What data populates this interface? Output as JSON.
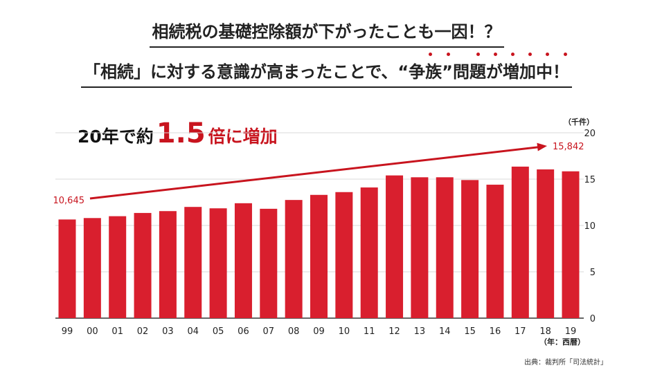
{
  "title_line1": "相続税の基礎控除額が下がったことも一因！？",
  "title_line2": "「相続」に対する意識が高まったことで、“争族”問題が増加中！",
  "callout": {
    "prefix": "20年で約",
    "number": "1.5",
    "suffix": "倍に増加"
  },
  "source": "出典：裁判所「司法統計」",
  "colors": {
    "bar": "#d91f2e",
    "accent": "#c8141e",
    "grid": "#d9d9d9",
    "axis": "#333333"
  },
  "chart_data": {
    "type": "bar",
    "categories": [
      "99",
      "00",
      "01",
      "02",
      "03",
      "04",
      "05",
      "06",
      "07",
      "08",
      "09",
      "10",
      "11",
      "12",
      "13",
      "14",
      "15",
      "16",
      "17",
      "18",
      "19"
    ],
    "values": [
      10645,
      10800,
      11000,
      11350,
      11550,
      12000,
      11850,
      12400,
      11800,
      12750,
      13300,
      13600,
      14100,
      15400,
      15200,
      15200,
      14900,
      14400,
      16350,
      16050,
      15842
    ],
    "y_unit_label": "（千件）",
    "x_unit_label": "（年：西暦）",
    "y_ticks": [
      0,
      5,
      10,
      15,
      20
    ],
    "ylim": [
      0,
      20
    ],
    "y_scale_note": "thousands",
    "annotations": [
      {
        "label": "10,645",
        "category": "99"
      },
      {
        "label": "15,842",
        "category": "19"
      }
    ],
    "grid": true
  }
}
